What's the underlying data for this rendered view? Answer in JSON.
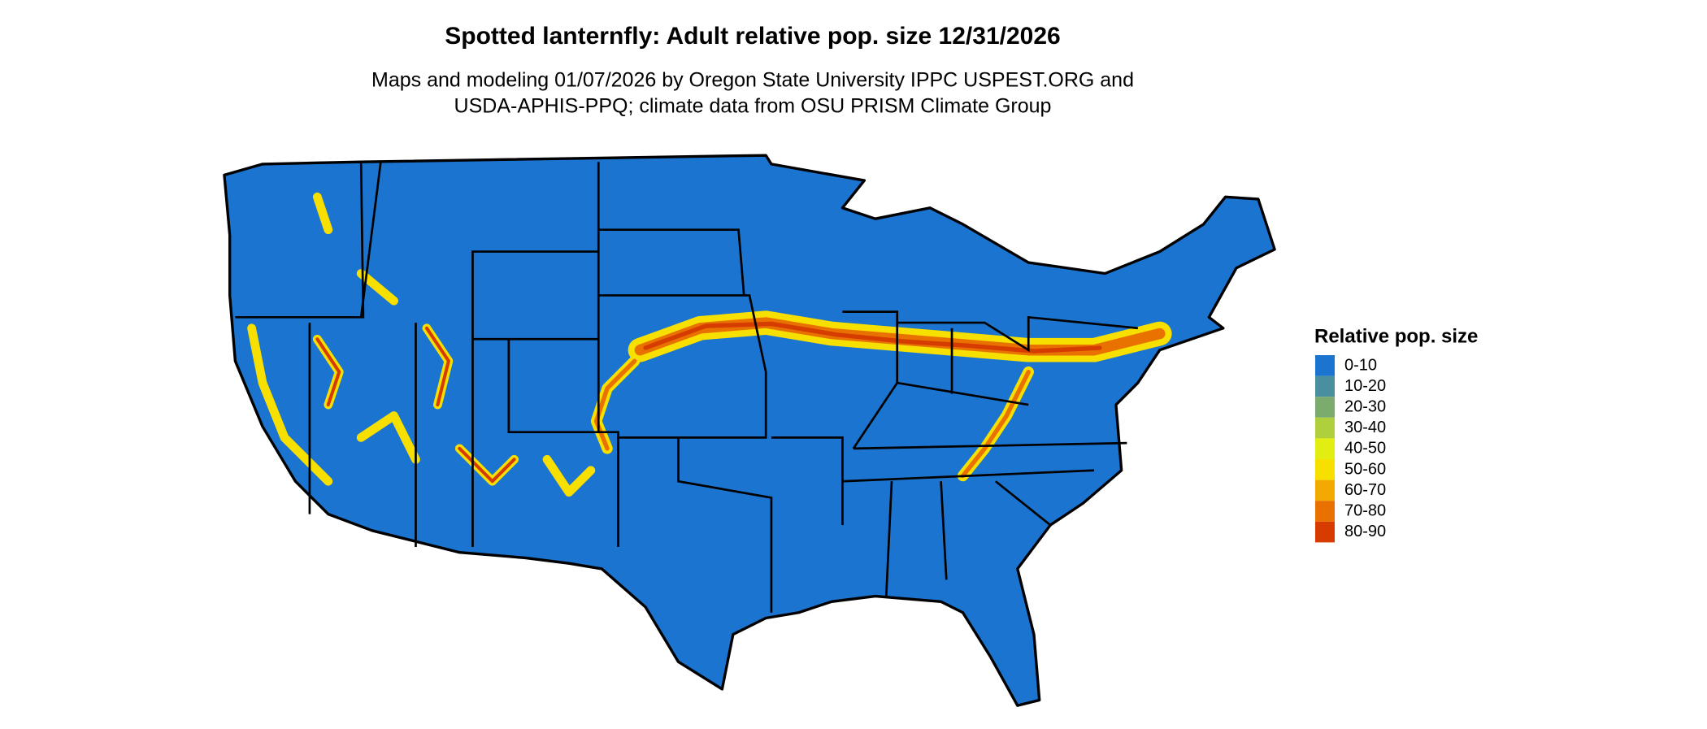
{
  "title": "Spotted lanternfly: Adult relative pop. size 12/31/2026",
  "subtitle": [
    "Maps and modeling 01/07/2026 by Oregon State University IPPC USPEST.ORG and",
    "USDA-APHIS-PPQ; climate data from OSU PRISM Climate Group"
  ],
  "legend": {
    "title": "Relative pop. size",
    "items": [
      {
        "label": "0-10",
        "color": "#1b74cf"
      },
      {
        "label": "10-20",
        "color": "#4a8fa0"
      },
      {
        "label": "20-30",
        "color": "#7bab6d"
      },
      {
        "label": "30-40",
        "color": "#afcf3c"
      },
      {
        "label": "40-50",
        "color": "#e2ee12"
      },
      {
        "label": "50-60",
        "color": "#f7df00"
      },
      {
        "label": "60-70",
        "color": "#f2aa00"
      },
      {
        "label": "70-80",
        "color": "#e87100"
      },
      {
        "label": "80-90",
        "color": "#d63b00"
      }
    ]
  }
}
